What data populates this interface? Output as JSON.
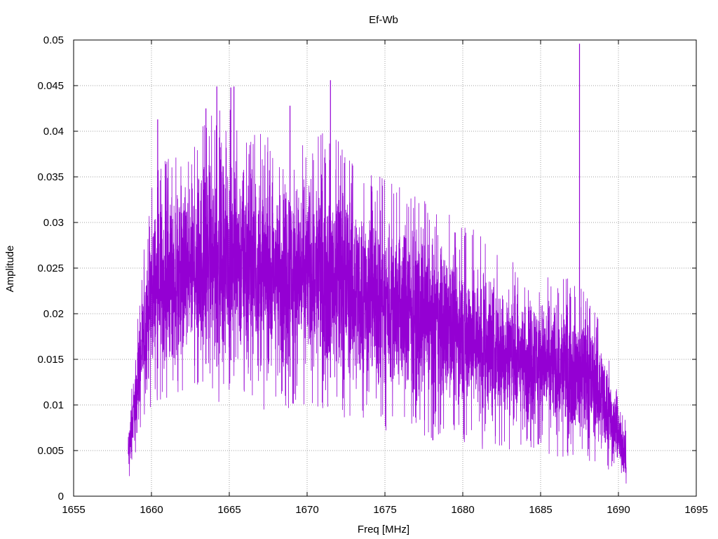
{
  "chart_data": {
    "type": "line",
    "title": "Ef-Wb",
    "xlabel": "Freq [MHz]",
    "ylabel": "Amplitude",
    "xlim": [
      1655,
      1695
    ],
    "ylim": [
      0,
      0.05
    ],
    "x_ticks": [
      "1655",
      "1660",
      "1665",
      "1670",
      "1675",
      "1680",
      "1685",
      "1690",
      "1695"
    ],
    "y_ticks": [
      "0",
      "0.005",
      "0.01",
      "0.015",
      "0.02",
      "0.025",
      "0.03",
      "0.035",
      "0.04",
      "0.045",
      "0.05"
    ],
    "grid": true,
    "series_color": "#9400d3",
    "series": [
      {
        "x_start": 1658.5,
        "x_end": 1690.5,
        "envelope": [
          {
            "x": 1658.5,
            "lo": 0.001,
            "hi": 0.008
          },
          {
            "x": 1659.0,
            "lo": 0.005,
            "hi": 0.017
          },
          {
            "x": 1659.5,
            "lo": 0.008,
            "hi": 0.027
          },
          {
            "x": 1660.0,
            "lo": 0.01,
            "hi": 0.035
          },
          {
            "x": 1661.0,
            "lo": 0.01,
            "hi": 0.037
          },
          {
            "x": 1662.0,
            "lo": 0.01,
            "hi": 0.038
          },
          {
            "x": 1663.0,
            "lo": 0.011,
            "hi": 0.04
          },
          {
            "x": 1664.0,
            "lo": 0.01,
            "hi": 0.042
          },
          {
            "x": 1665.0,
            "lo": 0.011,
            "hi": 0.043
          },
          {
            "x": 1666.0,
            "lo": 0.01,
            "hi": 0.041
          },
          {
            "x": 1667.0,
            "lo": 0.009,
            "hi": 0.04
          },
          {
            "x": 1668.0,
            "lo": 0.01,
            "hi": 0.039
          },
          {
            "x": 1669.0,
            "lo": 0.009,
            "hi": 0.04
          },
          {
            "x": 1670.0,
            "lo": 0.01,
            "hi": 0.039
          },
          {
            "x": 1671.0,
            "lo": 0.009,
            "hi": 0.04
          },
          {
            "x": 1672.0,
            "lo": 0.009,
            "hi": 0.039
          },
          {
            "x": 1673.0,
            "lo": 0.008,
            "hi": 0.037
          },
          {
            "x": 1674.0,
            "lo": 0.008,
            "hi": 0.036
          },
          {
            "x": 1675.0,
            "lo": 0.007,
            "hi": 0.035
          },
          {
            "x": 1676.0,
            "lo": 0.007,
            "hi": 0.034
          },
          {
            "x": 1677.0,
            "lo": 0.007,
            "hi": 0.033
          },
          {
            "x": 1678.0,
            "lo": 0.006,
            "hi": 0.032
          },
          {
            "x": 1679.0,
            "lo": 0.006,
            "hi": 0.031
          },
          {
            "x": 1680.0,
            "lo": 0.006,
            "hi": 0.03
          },
          {
            "x": 1681.0,
            "lo": 0.005,
            "hi": 0.029
          },
          {
            "x": 1682.0,
            "lo": 0.005,
            "hi": 0.027
          },
          {
            "x": 1683.0,
            "lo": 0.005,
            "hi": 0.026
          },
          {
            "x": 1684.0,
            "lo": 0.005,
            "hi": 0.025
          },
          {
            "x": 1685.0,
            "lo": 0.005,
            "hi": 0.025
          },
          {
            "x": 1686.0,
            "lo": 0.004,
            "hi": 0.024
          },
          {
            "x": 1687.0,
            "lo": 0.004,
            "hi": 0.024
          },
          {
            "x": 1688.0,
            "lo": 0.004,
            "hi": 0.022
          },
          {
            "x": 1689.0,
            "lo": 0.003,
            "hi": 0.019
          },
          {
            "x": 1690.0,
            "lo": 0.002,
            "hi": 0.011
          },
          {
            "x": 1690.5,
            "lo": 0.001,
            "hi": 0.008
          }
        ],
        "peaks": [
          {
            "x": 1660.4,
            "y": 0.0413
          },
          {
            "x": 1663.5,
            "y": 0.0425
          },
          {
            "x": 1664.2,
            "y": 0.0449
          },
          {
            "x": 1665.1,
            "y": 0.0448
          },
          {
            "x": 1665.3,
            "y": 0.0449
          },
          {
            "x": 1668.9,
            "y": 0.0428
          },
          {
            "x": 1671.5,
            "y": 0.0456
          },
          {
            "x": 1687.5,
            "y": 0.0496
          }
        ]
      }
    ]
  }
}
